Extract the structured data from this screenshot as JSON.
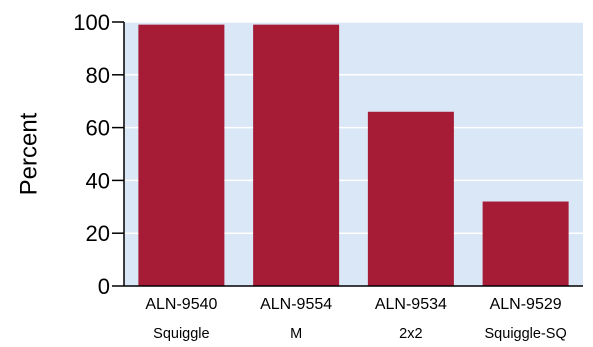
{
  "chart_data": {
    "type": "bar",
    "categories": [
      {
        "line1": "ALN-9540",
        "line2": "Squiggle"
      },
      {
        "line1": "ALN-9554",
        "line2": "M"
      },
      {
        "line1": "ALN-9534",
        "line2": "2x2"
      },
      {
        "line1": "ALN-9529",
        "line2": "Squiggle-SQ"
      }
    ],
    "values": [
      99,
      99,
      66,
      32
    ],
    "title": "",
    "xlabel": "",
    "ylabel": "Percent",
    "ylim": [
      0,
      100
    ],
    "yticks": [
      0,
      20,
      40,
      60,
      80,
      100
    ],
    "grid": true,
    "colors": {
      "bar": "#a61c36",
      "plot_background": "#d9e7f7",
      "grid": "#ffffff",
      "axis": "#000000"
    }
  }
}
